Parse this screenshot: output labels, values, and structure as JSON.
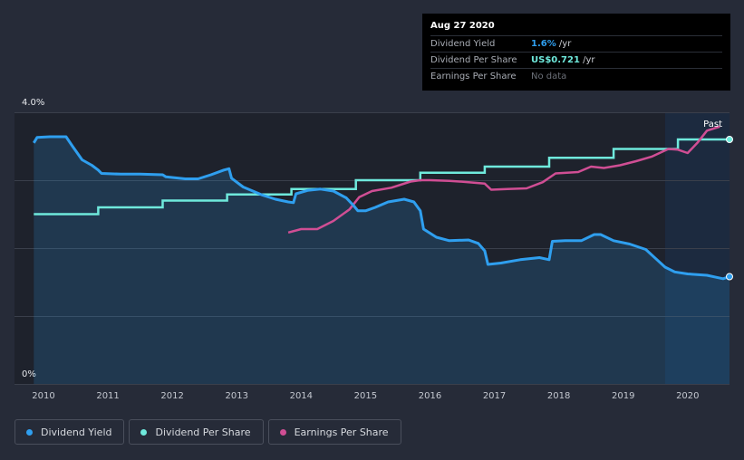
{
  "tooltip": {
    "date": "Aug 27 2020",
    "rows": [
      {
        "label": "Dividend Yield",
        "value": "1.6%",
        "unit": " /yr"
      },
      {
        "label": "Dividend Per Share",
        "value": "US$0.721",
        "unit": " /yr"
      },
      {
        "label": "Earnings Per Share",
        "value": "No data",
        "unit": ""
      }
    ]
  },
  "past_label": "Past",
  "colors": {
    "background": "#262b38",
    "plot_background": "#1e222c",
    "forecast_band": "#1c2a3f",
    "dividend_yield": "#2f9fef",
    "dividend_per_share": "#6fe9dc",
    "earnings_per_share": "#d04e94"
  },
  "legend": [
    {
      "label": "Dividend Yield",
      "color": "#2f9fef"
    },
    {
      "label": "Dividend Per Share",
      "color": "#6fe9dc"
    },
    {
      "label": "Earnings Per Share",
      "color": "#d04e94"
    }
  ],
  "chart_data": {
    "type": "line",
    "title": "",
    "xlabel": "",
    "ylabel": "",
    "y_tick_labels": [
      "4.0%",
      "0%"
    ],
    "ylim": [
      0,
      4.0
    ],
    "xlim": [
      2009.55,
      2020.65
    ],
    "x_ticks": [
      2010,
      2011,
      2012,
      2013,
      2014,
      2015,
      2016,
      2017,
      2018,
      2019,
      2020
    ],
    "past_region_start": 2019.65,
    "grid": true,
    "legend_position": "bottom-left",
    "series": [
      {
        "name": "Dividend Yield",
        "axis": "percent",
        "fill": true,
        "points": [
          [
            2009.85,
            3.55
          ],
          [
            2009.9,
            3.63
          ],
          [
            2010.1,
            3.64
          ],
          [
            2010.35,
            3.64
          ],
          [
            2010.45,
            3.5
          ],
          [
            2010.6,
            3.3
          ],
          [
            2010.75,
            3.22
          ],
          [
            2010.85,
            3.15
          ],
          [
            2010.9,
            3.1
          ],
          [
            2011.2,
            3.09
          ],
          [
            2011.5,
            3.09
          ],
          [
            2011.85,
            3.08
          ],
          [
            2011.9,
            3.05
          ],
          [
            2012.2,
            3.02
          ],
          [
            2012.4,
            3.02
          ],
          [
            2012.6,
            3.08
          ],
          [
            2012.8,
            3.15
          ],
          [
            2012.88,
            3.17
          ],
          [
            2012.92,
            3.03
          ],
          [
            2013.1,
            2.9
          ],
          [
            2013.4,
            2.78
          ],
          [
            2013.6,
            2.72
          ],
          [
            2013.8,
            2.68
          ],
          [
            2013.88,
            2.67
          ],
          [
            2013.92,
            2.8
          ],
          [
            2014.1,
            2.85
          ],
          [
            2014.3,
            2.87
          ],
          [
            2014.5,
            2.84
          ],
          [
            2014.7,
            2.74
          ],
          [
            2014.82,
            2.62
          ],
          [
            2014.88,
            2.55
          ],
          [
            2015.0,
            2.55
          ],
          [
            2015.15,
            2.6
          ],
          [
            2015.35,
            2.68
          ],
          [
            2015.6,
            2.72
          ],
          [
            2015.75,
            2.68
          ],
          [
            2015.85,
            2.55
          ],
          [
            2015.9,
            2.28
          ],
          [
            2016.1,
            2.16
          ],
          [
            2016.3,
            2.11
          ],
          [
            2016.6,
            2.12
          ],
          [
            2016.75,
            2.07
          ],
          [
            2016.85,
            1.96
          ],
          [
            2016.9,
            1.76
          ],
          [
            2017.1,
            1.78
          ],
          [
            2017.4,
            1.83
          ],
          [
            2017.7,
            1.86
          ],
          [
            2017.85,
            1.83
          ],
          [
            2017.9,
            2.1
          ],
          [
            2018.1,
            2.11
          ],
          [
            2018.35,
            2.11
          ],
          [
            2018.55,
            2.2
          ],
          [
            2018.65,
            2.2
          ],
          [
            2018.85,
            2.11
          ],
          [
            2019.1,
            2.06
          ],
          [
            2019.35,
            1.98
          ],
          [
            2019.5,
            1.85
          ],
          [
            2019.65,
            1.72
          ],
          [
            2019.8,
            1.65
          ],
          [
            2020.0,
            1.62
          ],
          [
            2020.3,
            1.6
          ],
          [
            2020.45,
            1.57
          ],
          [
            2020.55,
            1.55
          ],
          [
            2020.65,
            1.58
          ]
        ]
      },
      {
        "name": "Dividend Per Share",
        "axis": "value",
        "fill": false,
        "steps": [
          [
            2009.85,
            2.5
          ],
          [
            2010.85,
            2.6
          ],
          [
            2011.85,
            2.7
          ],
          [
            2012.85,
            2.79
          ],
          [
            2013.85,
            2.87
          ],
          [
            2014.85,
            3.0
          ],
          [
            2015.85,
            3.11
          ],
          [
            2016.85,
            3.2
          ],
          [
            2017.85,
            3.33
          ],
          [
            2018.85,
            3.46
          ],
          [
            2019.85,
            3.6
          ],
          [
            2020.65,
            3.6
          ]
        ]
      },
      {
        "name": "Earnings Per Share",
        "axis": "value",
        "fill": false,
        "points": [
          [
            2013.8,
            2.23
          ],
          [
            2014.0,
            2.28
          ],
          [
            2014.25,
            2.28
          ],
          [
            2014.5,
            2.4
          ],
          [
            2014.75,
            2.57
          ],
          [
            2014.9,
            2.75
          ],
          [
            2015.1,
            2.84
          ],
          [
            2015.4,
            2.89
          ],
          [
            2015.7,
            2.98
          ],
          [
            2015.85,
            3.0
          ],
          [
            2016.0,
            3.0
          ],
          [
            2016.3,
            2.99
          ],
          [
            2016.6,
            2.97
          ],
          [
            2016.85,
            2.95
          ],
          [
            2016.95,
            2.86
          ],
          [
            2017.2,
            2.87
          ],
          [
            2017.5,
            2.88
          ],
          [
            2017.75,
            2.97
          ],
          [
            2017.95,
            3.1
          ],
          [
            2018.3,
            3.12
          ],
          [
            2018.5,
            3.2
          ],
          [
            2018.7,
            3.18
          ],
          [
            2018.95,
            3.22
          ],
          [
            2019.2,
            3.28
          ],
          [
            2019.45,
            3.35
          ],
          [
            2019.7,
            3.46
          ],
          [
            2019.85,
            3.45
          ],
          [
            2020.0,
            3.4
          ],
          [
            2020.15,
            3.55
          ],
          [
            2020.3,
            3.73
          ],
          [
            2020.5,
            3.79
          ]
        ]
      }
    ]
  }
}
